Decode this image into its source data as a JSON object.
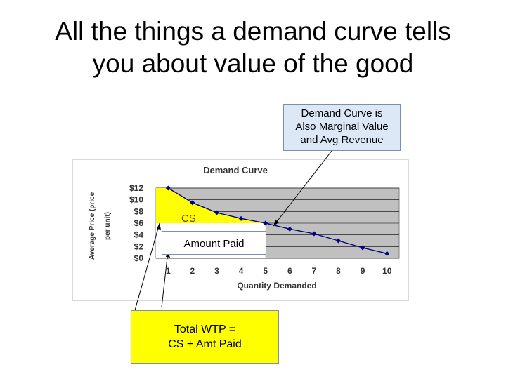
{
  "slide": {
    "title_line1": "All the things a demand curve tells",
    "title_line2": "you about value of the good"
  },
  "callouts": {
    "marginal_value_line1": "Demand Curve is",
    "marginal_value_line2": "Also Marginal Value",
    "marginal_value_line3": "and Avg Revenue",
    "cs_label": "CS",
    "amount_paid": "Amount Paid",
    "total_wtp_line1": "Total WTP =",
    "total_wtp_line2": "CS + Amt Paid"
  },
  "colors": {
    "plot_area": "#c0c0c0",
    "cs_fill": "#ffff00",
    "series": "#000080",
    "amount_paid_fill": "#ffffff"
  },
  "chart_data": {
    "type": "line",
    "title": "Demand Curve",
    "xlabel": "Quantity Demanded",
    "ylabel_line1": "Average Price (price",
    "ylabel_line2": "per unit)",
    "x": [
      1,
      2,
      3,
      4,
      5,
      6,
      7,
      8,
      9,
      10
    ],
    "x_ticks": [
      "1",
      "2",
      "3",
      "4",
      "5",
      "6",
      "7",
      "8",
      "9",
      "10"
    ],
    "y_ticks": [
      "$0",
      "$2",
      "$4",
      "$6",
      "$8",
      "$10",
      "$12"
    ],
    "ylim": [
      0,
      12
    ],
    "series": [
      {
        "values": [
          12,
          9.5,
          7.8,
          6.8,
          6.0,
          5.0,
          4.2,
          3.0,
          1.8,
          0.8
        ]
      }
    ],
    "grid": true,
    "legend": "none"
  }
}
